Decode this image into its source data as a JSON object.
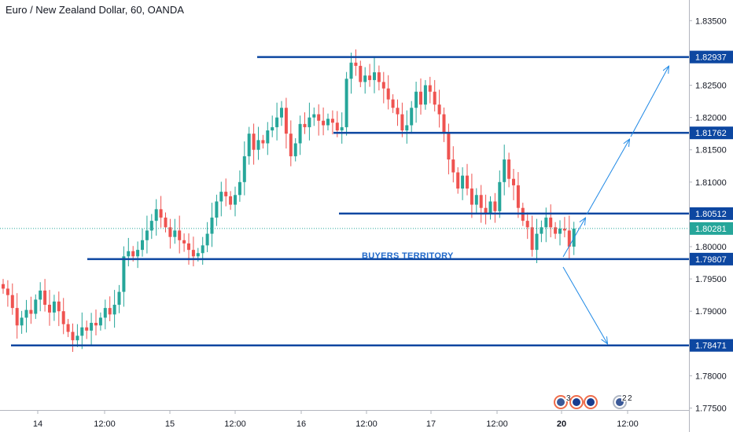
{
  "header": {
    "title": "Euro / New Zealand Dollar, 60, OANDA"
  },
  "colors": {
    "up": "#26a69a",
    "down": "#ef5350",
    "level_line": "#0d47a1",
    "arrow": "#1e88e5",
    "current_price": "#26a69a",
    "annotation": "#1f68c9"
  },
  "chart_data": {
    "type": "candlestick",
    "title": "Euro / New Zealand Dollar, 60, OANDA",
    "y_ticks": [
      "1.83500",
      "1.82500",
      "1.82000",
      "1.81500",
      "1.81000",
      "1.80000",
      "1.79500",
      "1.79000",
      "1.78500",
      "1.78000",
      "1.77500"
    ],
    "x_ticks": [
      {
        "label": "14",
        "bold": false
      },
      {
        "label": "12:00",
        "bold": false
      },
      {
        "label": "15",
        "bold": false
      },
      {
        "label": "12:00",
        "bold": false
      },
      {
        "label": "16",
        "bold": false
      },
      {
        "label": "12:00",
        "bold": false
      },
      {
        "label": "17",
        "bold": false
      },
      {
        "label": "12:00",
        "bold": false
      },
      {
        "label": "20",
        "bold": true
      },
      {
        "label": "12:00",
        "bold": false
      }
    ],
    "ylim": [
      1.7747,
      1.8382
    ],
    "grid": false,
    "current_price": "1.80281",
    "levels": [
      {
        "label": "1.82937",
        "value": 1.82937
      },
      {
        "label": "1.81762",
        "value": 1.81762
      },
      {
        "label": "1.80512",
        "value": 1.80512
      },
      {
        "label": "1.79807",
        "value": 1.79807
      },
      {
        "label": "1.78471",
        "value": 1.78471
      }
    ],
    "annotations": [
      {
        "text": "BUYERS TERRITORY"
      }
    ],
    "candle_closes": [
      1.7935,
      1.7925,
      1.7905,
      1.7878,
      1.789,
      1.7902,
      1.7896,
      1.7918,
      1.7932,
      1.791,
      1.7898,
      1.7915,
      1.79,
      1.788,
      1.7868,
      1.7855,
      1.7862,
      1.7875,
      1.787,
      1.7882,
      1.7878,
      1.789,
      1.7905,
      1.7895,
      1.791,
      1.793,
      1.7985,
      1.7993,
      1.7985,
      1.7995,
      1.801,
      1.8025,
      1.804,
      1.8058,
      1.8045,
      1.803,
      1.8015,
      1.8025,
      1.801,
      1.8005,
      1.7995,
      1.7985,
      1.799,
      1.8002,
      1.802,
      1.8045,
      1.807,
      1.8085,
      1.8078,
      1.8065,
      1.808,
      1.81,
      1.814,
      1.8175,
      1.815,
      1.8165,
      1.816,
      1.818,
      1.8185,
      1.82,
      1.8215,
      1.8175,
      1.814,
      1.816,
      1.819,
      1.8185,
      1.82,
      1.8205,
      1.8195,
      1.8188,
      1.8198,
      1.8192,
      1.818,
      1.8185,
      1.826,
      1.8285,
      1.828,
      1.8255,
      1.8265,
      1.8258,
      1.827,
      1.8255,
      1.8245,
      1.8228,
      1.8215,
      1.8205,
      1.818,
      1.8188,
      1.8215,
      1.824,
      1.822,
      1.825,
      1.824,
      1.822,
      1.8205,
      1.8175,
      1.8135,
      1.8115,
      1.809,
      1.811,
      1.809,
      1.8065,
      1.808,
      1.806,
      1.805,
      1.807,
      1.8055,
      1.81,
      1.8135,
      1.8105,
      1.8095,
      1.806,
      1.804,
      1.803,
      1.7995,
      1.802,
      1.803,
      1.8045,
      1.803,
      1.802,
      1.8028,
      1.8025,
      1.8,
      1.8028
    ]
  },
  "badges": [
    "3",
    "2"
  ]
}
